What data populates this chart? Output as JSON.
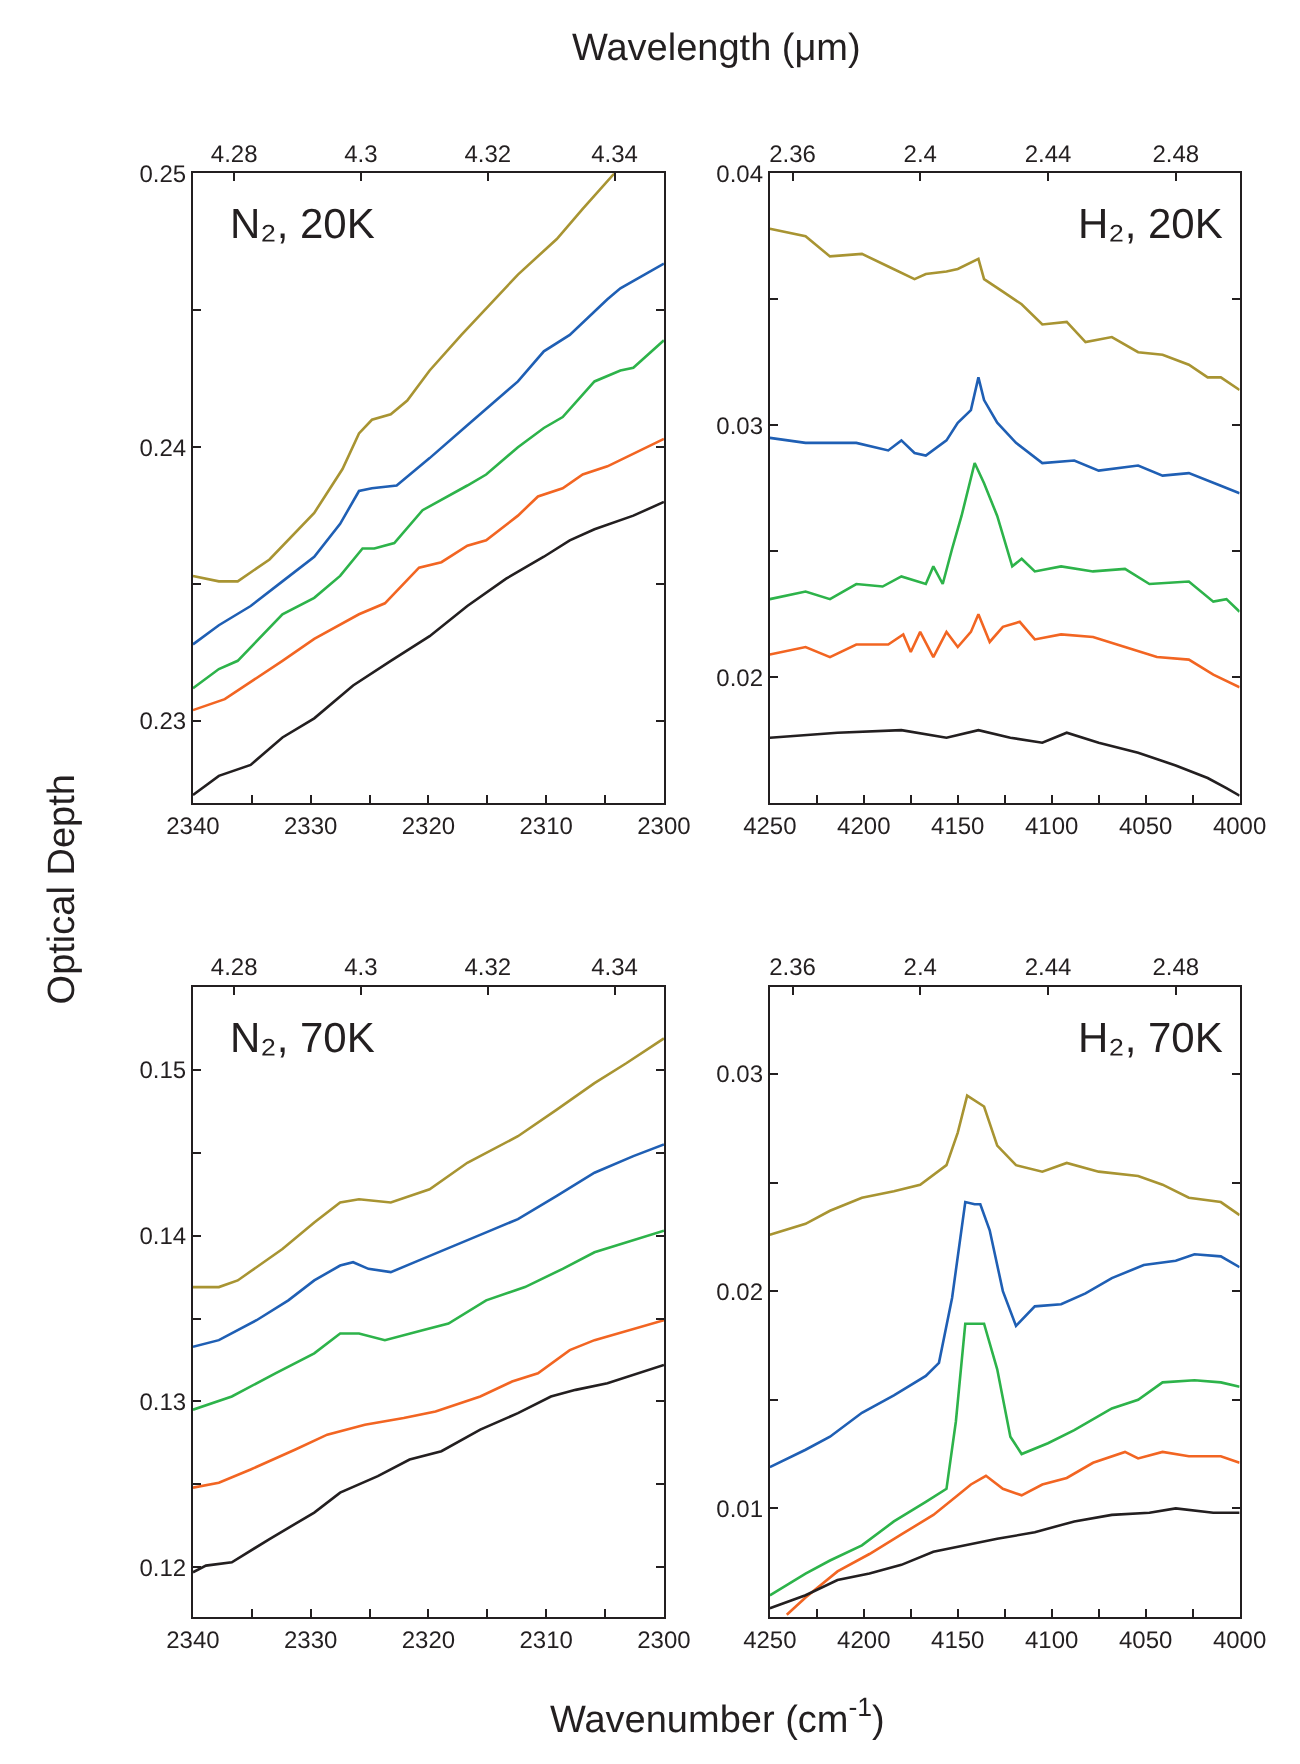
{
  "chart_data": [
    {
      "type": "line",
      "title": "N₂, 20K",
      "ylabel": "Optical Depth",
      "x2label": "Wavelength (μm)",
      "marker": "none",
      "line_style": "solid",
      "xlim": [
        2340,
        2300
      ],
      "xticks": [
        2340,
        {
          "value": 2335,
          "label": null
        },
        2330,
        {
          "value": 2325,
          "label": null
        },
        2320,
        {
          "value": 2315,
          "label": null
        },
        2310,
        {
          "value": 2305,
          "label": null
        },
        2300
      ],
      "x2lim": [
        4.2735,
        4.3478
      ],
      "x2ticks": [
        4.28,
        4.3,
        4.32,
        4.34
      ],
      "ylim": [
        0.227,
        0.25
      ],
      "yticks": [
        0.23,
        {
          "value": 0.235,
          "label": null
        },
        0.24,
        {
          "value": 0.245,
          "label": null
        },
        0.25
      ],
      "series": [
        {
          "color": "#a89432",
          "x": [
            2340,
            2337.8,
            2336.2,
            2333.5,
            2329.7,
            2327.3,
            2325.9,
            2324.8,
            2323.2,
            2321.8,
            2319.9,
            2317.2,
            2312.4,
            2309.1,
            2306.9,
            2304.2
          ],
          "values": [
            0.2353,
            0.2351,
            0.2351,
            0.2359,
            0.2376,
            0.2392,
            0.2405,
            0.241,
            0.2412,
            0.2417,
            0.2428,
            0.2441,
            0.2463,
            0.2476,
            0.2487,
            0.25
          ]
        },
        {
          "color": "#1f5fb4",
          "x": [
            2340,
            2337.8,
            2335.1,
            2332.4,
            2329.7,
            2327.5,
            2325.9,
            2324.8,
            2322.7,
            2319.9,
            2316.7,
            2312.4,
            2310.2,
            2308.0,
            2304.8,
            2303.7,
            2300
          ],
          "values": [
            0.2328,
            0.2335,
            0.2342,
            0.2351,
            0.236,
            0.2372,
            0.2384,
            0.2385,
            0.2386,
            0.2396,
            0.2408,
            0.2424,
            0.2435,
            0.2441,
            0.2454,
            0.2458,
            0.2467
          ]
        },
        {
          "color": "#2db34a",
          "x": [
            2340,
            2337.8,
            2336.2,
            2332.4,
            2329.7,
            2327.5,
            2325.6,
            2324.6,
            2322.9,
            2320.5,
            2316.7,
            2315.1,
            2312.4,
            2310.2,
            2308.6,
            2305.9,
            2303.7,
            2302.6,
            2300
          ],
          "values": [
            0.2312,
            0.2319,
            0.2322,
            0.2339,
            0.2345,
            0.2353,
            0.2363,
            0.2363,
            0.2365,
            0.2377,
            0.2386,
            0.239,
            0.24,
            0.2407,
            0.2411,
            0.2424,
            0.2428,
            0.2429,
            0.2439
          ]
        },
        {
          "color": "#f26522",
          "x": [
            2340,
            2337.3,
            2332.4,
            2329.7,
            2325.9,
            2323.7,
            2320.8,
            2318.9,
            2316.7,
            2315.1,
            2312.4,
            2310.7,
            2308.6,
            2306.9,
            2304.8,
            2300
          ],
          "values": [
            0.2304,
            0.2308,
            0.2322,
            0.233,
            0.2339,
            0.2343,
            0.2356,
            0.2358,
            0.2364,
            0.2366,
            0.2375,
            0.2382,
            0.2385,
            0.239,
            0.2393,
            0.2403
          ]
        },
        {
          "color": "#231f20",
          "x": [
            2340,
            2337.8,
            2335.1,
            2332.4,
            2329.7,
            2326.4,
            2323.2,
            2319.9,
            2316.7,
            2313.4,
            2310.2,
            2308.0,
            2305.9,
            2302.6,
            2300
          ],
          "values": [
            0.2273,
            0.228,
            0.2284,
            0.2294,
            0.2301,
            0.2313,
            0.2322,
            0.2331,
            0.2342,
            0.2352,
            0.236,
            0.2366,
            0.237,
            0.2375,
            0.238
          ]
        }
      ]
    },
    {
      "type": "line",
      "title": "H₂, 20K",
      "marker": "none",
      "line_style": "solid",
      "xlim": [
        4250,
        4000
      ],
      "xticks": [
        4250,
        {
          "value": 4225,
          "label": null
        },
        4200,
        {
          "value": 4175,
          "label": null
        },
        4150,
        {
          "value": 4125,
          "label": null
        },
        4100,
        {
          "value": 4075,
          "label": null
        },
        4050,
        {
          "value": 4025,
          "label": null
        },
        4000
      ],
      "x2lim": [
        2.3529,
        2.5
      ],
      "x2ticks": [
        2.36,
        2.4,
        2.44,
        2.48
      ],
      "ylim": [
        0.015,
        0.04
      ],
      "yticks": [
        0.02,
        {
          "value": 0.025,
          "label": null
        },
        0.03,
        {
          "value": 0.035,
          "label": null
        },
        0.04
      ],
      "series": [
        {
          "color": "#a89432",
          "x": [
            4250,
            4231,
            4218,
            4201,
            4187,
            4173,
            4167,
            4156,
            4150,
            4139,
            4136,
            4126,
            4116,
            4105,
            4092,
            4082,
            4068,
            4054,
            4041,
            4027,
            4017,
            4010,
            4000
          ],
          "values": [
            0.0378,
            0.0375,
            0.0367,
            0.0368,
            0.0363,
            0.0358,
            0.036,
            0.0361,
            0.0362,
            0.0366,
            0.0358,
            0.0353,
            0.0348,
            0.034,
            0.0341,
            0.0333,
            0.0335,
            0.0329,
            0.0328,
            0.0324,
            0.0319,
            0.0319,
            0.0314
          ]
        },
        {
          "color": "#1f5fb4",
          "x": [
            4250,
            4231,
            4204,
            4187,
            4180,
            4173,
            4167,
            4156,
            4150,
            4143,
            4139,
            4136,
            4129,
            4119,
            4105,
            4088,
            4075,
            4054,
            4041,
            4027,
            4010,
            4000
          ],
          "values": [
            0.0295,
            0.0293,
            0.0293,
            0.029,
            0.0294,
            0.0289,
            0.0288,
            0.0294,
            0.0301,
            0.0306,
            0.0319,
            0.031,
            0.0301,
            0.0293,
            0.0285,
            0.0286,
            0.0282,
            0.0284,
            0.028,
            0.0281,
            0.0276,
            0.0273
          ]
        },
        {
          "color": "#2db34a",
          "x": [
            4250,
            4231,
            4218,
            4204,
            4190,
            4180,
            4167,
            4163,
            4158,
            4153,
            4148,
            4141,
            4136,
            4129,
            4121,
            4116,
            4109,
            4095,
            4078,
            4061,
            4048,
            4027,
            4014,
            4007,
            4000
          ],
          "values": [
            0.0231,
            0.0234,
            0.0231,
            0.0237,
            0.0236,
            0.024,
            0.0237,
            0.0244,
            0.0237,
            0.0251,
            0.0264,
            0.0285,
            0.0277,
            0.0264,
            0.0244,
            0.0247,
            0.0242,
            0.0244,
            0.0242,
            0.0243,
            0.0237,
            0.0238,
            0.023,
            0.0231,
            0.0226
          ]
        },
        {
          "color": "#f26522",
          "x": [
            4250,
            4231,
            4218,
            4204,
            4187,
            4179,
            4175,
            4170,
            4163,
            4156,
            4150,
            4143,
            4139,
            4133,
            4126,
            4117,
            4109,
            4095,
            4078,
            4061,
            4044,
            4027,
            4014,
            4000
          ],
          "values": [
            0.0209,
            0.0212,
            0.0208,
            0.0213,
            0.0213,
            0.0217,
            0.021,
            0.0218,
            0.0208,
            0.0218,
            0.0212,
            0.0218,
            0.0225,
            0.0214,
            0.022,
            0.0222,
            0.0215,
            0.0217,
            0.0216,
            0.0212,
            0.0208,
            0.0207,
            0.0201,
            0.0196
          ]
        },
        {
          "color": "#231f20",
          "x": [
            4250,
            4214,
            4180,
            4156,
            4139,
            4122,
            4105,
            4092,
            4075,
            4054,
            4034,
            4017,
            4007,
            4000
          ],
          "values": [
            0.0176,
            0.0178,
            0.0179,
            0.0176,
            0.0179,
            0.0176,
            0.0174,
            0.0178,
            0.0174,
            0.017,
            0.0165,
            0.016,
            0.0156,
            0.0153
          ]
        }
      ]
    },
    {
      "type": "line",
      "title": "N₂, 70K",
      "xlabel": "Wavenumber (cm$^{-1}$)",
      "marker": "none",
      "line_style": "solid",
      "xlim": [
        2340,
        2300
      ],
      "xticks": [
        2340,
        {
          "value": 2335,
          "label": null
        },
        2330,
        {
          "value": 2325,
          "label": null
        },
        2320,
        {
          "value": 2315,
          "label": null
        },
        2310,
        {
          "value": 2305,
          "label": null
        },
        2300
      ],
      "x2lim": [
        4.2735,
        4.3478
      ],
      "x2ticks": [
        4.28,
        4.3,
        4.32,
        4.34
      ],
      "ylim": [
        0.117,
        0.155
      ],
      "yticks": [
        0.12,
        {
          "value": 0.125,
          "label": null
        },
        0.13,
        {
          "value": 0.135,
          "label": null
        },
        0.14,
        {
          "value": 0.145,
          "label": null
        },
        0.15
      ],
      "series": [
        {
          "color": "#a89432",
          "x": [
            2340,
            2337.8,
            2336.2,
            2332.4,
            2329.7,
            2327.5,
            2325.9,
            2323.2,
            2319.9,
            2316.7,
            2312.4,
            2309.1,
            2305.9,
            2303.2,
            2300
          ],
          "values": [
            0.1369,
            0.1369,
            0.1373,
            0.1392,
            0.1408,
            0.142,
            0.1422,
            0.142,
            0.1428,
            0.1444,
            0.146,
            0.1476,
            0.1492,
            0.1504,
            0.1519
          ]
        },
        {
          "color": "#1f5fb4",
          "x": [
            2340,
            2337.8,
            2334.6,
            2331.9,
            2329.7,
            2327.5,
            2326.4,
            2325.1,
            2323.2,
            2320.5,
            2317.8,
            2315.1,
            2312.4,
            2309.1,
            2305.9,
            2302.6,
            2300
          ],
          "values": [
            0.1333,
            0.1337,
            0.1349,
            0.1361,
            0.1373,
            0.1382,
            0.1384,
            0.138,
            0.1378,
            0.1386,
            0.1394,
            0.1402,
            0.141,
            0.1424,
            0.1438,
            0.1448,
            0.1455
          ]
        },
        {
          "color": "#2db34a",
          "x": [
            2340,
            2336.7,
            2333.0,
            2329.7,
            2327.5,
            2325.9,
            2323.7,
            2320.5,
            2318.3,
            2315.1,
            2311.8,
            2308.6,
            2305.9,
            2300
          ],
          "values": [
            0.1295,
            0.1303,
            0.1317,
            0.1329,
            0.1341,
            0.1341,
            0.1337,
            0.1343,
            0.1347,
            0.1361,
            0.1369,
            0.138,
            0.139,
            0.1403
          ]
        },
        {
          "color": "#f26522",
          "x": [
            2340,
            2337.8,
            2335.1,
            2331.3,
            2328.6,
            2325.4,
            2322.1,
            2319.4,
            2315.6,
            2312.9,
            2310.7,
            2308.0,
            2305.9,
            2300
          ],
          "values": [
            0.1248,
            0.1251,
            0.1259,
            0.1271,
            0.128,
            0.1286,
            0.129,
            0.1294,
            0.1303,
            0.1312,
            0.1317,
            0.1331,
            0.1337,
            0.1349
          ]
        },
        {
          "color": "#231f20",
          "x": [
            2340,
            2338.9,
            2336.7,
            2333.5,
            2329.7,
            2327.5,
            2324.3,
            2321.6,
            2318.9,
            2315.6,
            2312.4,
            2309.6,
            2307.5,
            2304.8,
            2300
          ],
          "values": [
            0.1197,
            0.1201,
            0.1203,
            0.1217,
            0.1233,
            0.1245,
            0.1255,
            0.1265,
            0.127,
            0.1283,
            0.1293,
            0.1303,
            0.1307,
            0.1311,
            0.1322
          ]
        }
      ]
    },
    {
      "type": "line",
      "title": "H₂, 70K",
      "marker": "none",
      "line_style": "solid",
      "xlim": [
        4250,
        4000
      ],
      "xticks": [
        4250,
        {
          "value": 4225,
          "label": null
        },
        4200,
        {
          "value": 4175,
          "label": null
        },
        4150,
        {
          "value": 4125,
          "label": null
        },
        4100,
        {
          "value": 4075,
          "label": null
        },
        4050,
        {
          "value": 4025,
          "label": null
        },
        4000
      ],
      "x2lim": [
        2.3529,
        2.5
      ],
      "x2ticks": [
        2.36,
        2.4,
        2.44,
        2.48
      ],
      "ylim": [
        0.005,
        0.034
      ],
      "yticks": [
        0.01,
        {
          "value": 0.015,
          "label": null
        },
        0.02,
        {
          "value": 0.025,
          "label": null
        },
        0.03
      ],
      "series": [
        {
          "color": "#a89432",
          "x": [
            4250,
            4231,
            4218,
            4201,
            4184,
            4170,
            4156,
            4150,
            4145,
            4136,
            4129,
            4119,
            4105,
            4092,
            4075,
            4054,
            4041,
            4027,
            4010,
            4000
          ],
          "values": [
            0.0226,
            0.0231,
            0.0237,
            0.0243,
            0.0246,
            0.0249,
            0.0258,
            0.0273,
            0.029,
            0.0285,
            0.0267,
            0.0258,
            0.0255,
            0.0259,
            0.0255,
            0.0253,
            0.0249,
            0.0243,
            0.0241,
            0.0235
          ]
        },
        {
          "color": "#1f5fb4",
          "x": [
            4250,
            4231,
            4218,
            4201,
            4184,
            4167,
            4160,
            4153,
            4146,
            4141,
            4138,
            4133,
            4126,
            4119,
            4109,
            4095,
            4082,
            4068,
            4051,
            4034,
            4024,
            4010,
            4000
          ],
          "values": [
            0.0119,
            0.0127,
            0.0133,
            0.0144,
            0.0152,
            0.0161,
            0.0167,
            0.0197,
            0.0241,
            0.024,
            0.024,
            0.0228,
            0.02,
            0.0184,
            0.0193,
            0.0194,
            0.0199,
            0.0206,
            0.0212,
            0.0214,
            0.0217,
            0.0216,
            0.0211
          ]
        },
        {
          "color": "#2db34a",
          "x": [
            4250,
            4231,
            4218,
            4201,
            4184,
            4167,
            4156,
            4151,
            4146,
            4136,
            4129,
            4122,
            4116,
            4102,
            4088,
            4068,
            4054,
            4041,
            4024,
            4010,
            4000
          ],
          "values": [
            0.006,
            0.007,
            0.0076,
            0.0083,
            0.0094,
            0.0103,
            0.0109,
            0.014,
            0.0185,
            0.0185,
            0.0164,
            0.0133,
            0.0125,
            0.013,
            0.0136,
            0.0146,
            0.015,
            0.0158,
            0.0159,
            0.0158,
            0.0156
          ]
        },
        {
          "color": "#f26522",
          "x": [
            4241,
            4231,
            4214,
            4197,
            4180,
            4163,
            4150,
            4143,
            4135,
            4126,
            4116,
            4105,
            4092,
            4078,
            4061,
            4054,
            4041,
            4027,
            4010,
            4000
          ],
          "values": [
            0.0051,
            0.0059,
            0.0071,
            0.0079,
            0.0088,
            0.0097,
            0.0106,
            0.0111,
            0.0115,
            0.0109,
            0.0106,
            0.0111,
            0.0114,
            0.0121,
            0.0126,
            0.0123,
            0.0126,
            0.0124,
            0.0124,
            0.0121
          ]
        },
        {
          "color": "#231f20",
          "x": [
            4250,
            4231,
            4214,
            4197,
            4180,
            4163,
            4146,
            4129,
            4109,
            4088,
            4068,
            4048,
            4034,
            4014,
            4000
          ],
          "values": [
            0.0054,
            0.006,
            0.0067,
            0.007,
            0.0074,
            0.008,
            0.0083,
            0.0086,
            0.0089,
            0.0094,
            0.0097,
            0.0098,
            0.01,
            0.0098,
            0.0098
          ]
        }
      ]
    }
  ]
}
